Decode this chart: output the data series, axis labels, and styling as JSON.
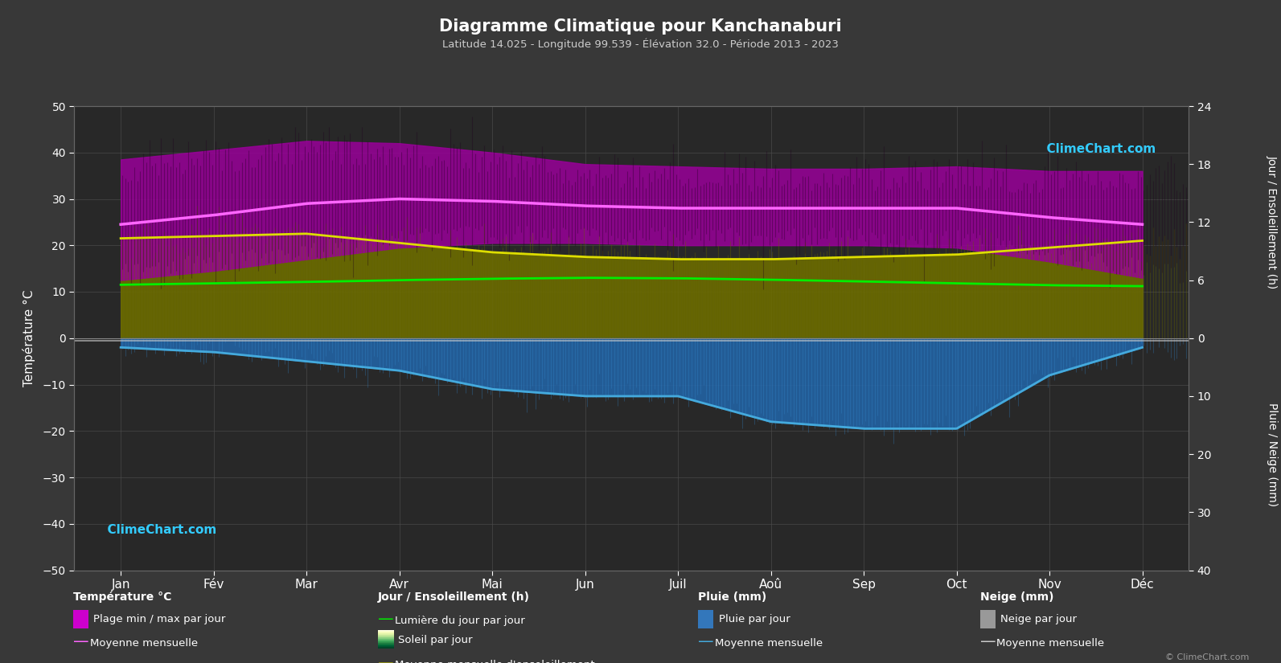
{
  "title": "Diagramme Climatique pour Kanchanaburi",
  "subtitle": "Latitude 14.025 - Longitude 99.539 - Élévation 32.0 - Période 2013 - 2023",
  "months": [
    "Jan",
    "Fév",
    "Mar",
    "Avr",
    "Mai",
    "Jun",
    "Juil",
    "Aoû",
    "Sep",
    "Oct",
    "Nov",
    "Déc"
  ],
  "temp_min_monthly": [
    16.5,
    18.5,
    21.0,
    23.5,
    24.5,
    24.5,
    24.0,
    24.0,
    24.0,
    23.5,
    20.5,
    17.0
  ],
  "temp_max_monthly": [
    33.5,
    35.5,
    37.5,
    37.0,
    35.0,
    32.5,
    32.0,
    31.5,
    31.5,
    32.0,
    31.0,
    31.0
  ],
  "temp_mean_monthly": [
    24.5,
    26.5,
    29.0,
    30.0,
    29.5,
    28.5,
    28.0,
    28.0,
    28.0,
    28.0,
    26.0,
    24.5
  ],
  "daylight_monthly": [
    11.5,
    11.8,
    12.1,
    12.5,
    12.8,
    13.0,
    12.9,
    12.6,
    12.2,
    11.8,
    11.4,
    11.2
  ],
  "sunshine_monthly": [
    21.5,
    22.0,
    22.5,
    20.5,
    18.5,
    17.5,
    17.0,
    17.0,
    17.5,
    18.0,
    19.5,
    21.0
  ],
  "rain_mean_left": [
    -2.0,
    -3.0,
    -5.0,
    -7.0,
    -11.0,
    -12.5,
    -12.5,
    -18.0,
    -19.5,
    -19.5,
    -8.0,
    -2.0
  ],
  "bg_color": "#383838",
  "plot_bg_color": "#282828",
  "grid_color": "#4a4a4a",
  "daylight_line_color": "#00ee00",
  "sunshine_line_color": "#dddd00",
  "temp_mean_line_color": "#ff66ff",
  "rain_mean_line_color": "#44aadd",
  "snow_mean_line_color": "#cccccc",
  "title_color": "#ffffff",
  "subtitle_color": "#cccccc",
  "tick_color": "#ffffff",
  "label_color": "#ffffff"
}
